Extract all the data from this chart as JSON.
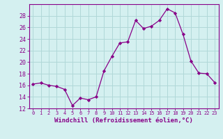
{
  "x": [
    0,
    1,
    2,
    3,
    4,
    5,
    6,
    7,
    8,
    9,
    10,
    11,
    12,
    13,
    14,
    15,
    16,
    17,
    18,
    19,
    20,
    21,
    22,
    23
  ],
  "y": [
    16.2,
    16.4,
    16.0,
    15.8,
    15.3,
    12.5,
    13.8,
    13.5,
    14.0,
    18.5,
    21.0,
    23.3,
    23.5,
    27.2,
    25.8,
    26.2,
    27.2,
    29.2,
    28.5,
    24.8,
    20.2,
    18.1,
    18.0,
    16.5
  ],
  "line_color": "#880088",
  "marker_color": "#880088",
  "bg_color": "#d4f0f0",
  "grid_color": "#b0d8d8",
  "axis_color": "#880088",
  "xlabel": "Windchill (Refroidissement éolien,°C)",
  "ylim": [
    12,
    30
  ],
  "xlim": [
    -0.5,
    23.5
  ],
  "yticks": [
    12,
    14,
    16,
    18,
    20,
    22,
    24,
    26,
    28
  ],
  "xticks": [
    0,
    1,
    2,
    3,
    4,
    5,
    6,
    7,
    8,
    9,
    10,
    11,
    12,
    13,
    14,
    15,
    16,
    17,
    18,
    19,
    20,
    21,
    22,
    23
  ],
  "title_color": "#880088",
  "spine_color": "#880088"
}
